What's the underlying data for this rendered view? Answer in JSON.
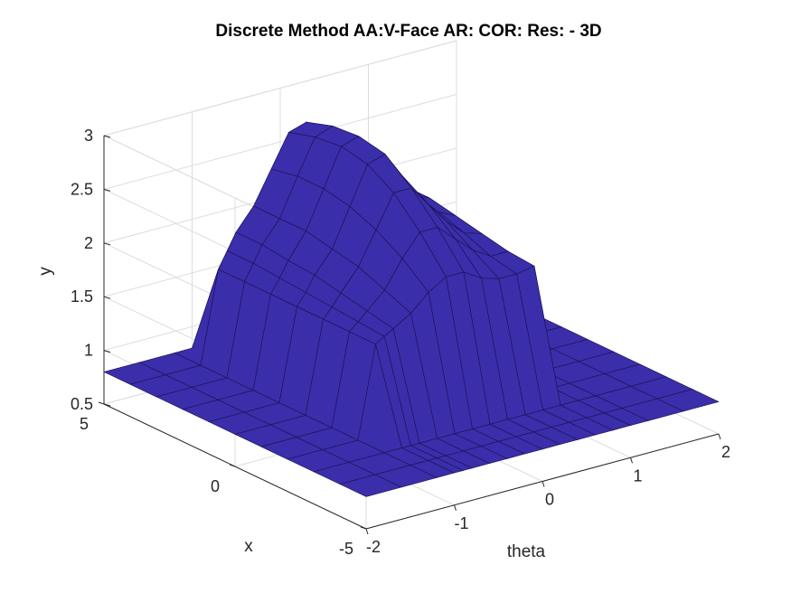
{
  "chart_data": {
    "type": "surface3d",
    "title": "Discrete Method AA:V-Face AR:     COR: Res: - 3D",
    "xlabel": "theta",
    "ylabel": "x",
    "zlabel": "y",
    "theta_lim": [
      -2,
      2
    ],
    "x_lim": [
      -5,
      5
    ],
    "y_lim": [
      0.5,
      3
    ],
    "theta_ticks": [
      -2,
      -1,
      0,
      1,
      2
    ],
    "x_ticks": [
      -5,
      0,
      5
    ],
    "y_ticks": [
      0.5,
      1,
      1.5,
      2,
      2.5,
      3
    ],
    "grid": true,
    "face_color": "#3a2eaa",
    "edge_color": "#1a1050",
    "highlight_color": "#d8d020",
    "surface": {
      "theta": [
        -2,
        -1.6,
        -1.2,
        -1.0,
        -0.9,
        -0.8,
        -0.6,
        -0.4,
        -0.2,
        0,
        0.2,
        0.4,
        0.6,
        0.8,
        1.0,
        1.2,
        1.6,
        2
      ],
      "x": [
        -5,
        -4,
        -3,
        -2,
        -1,
        0,
        1,
        2,
        3,
        4,
        5
      ],
      "y": [
        [
          0.8,
          0.8,
          0.8,
          0.8,
          0.8,
          0.8,
          0.8,
          0.8,
          0.8,
          0.8,
          0.8
        ],
        [
          0.8,
          0.8,
          0.8,
          0.8,
          0.8,
          0.8,
          0.8,
          0.8,
          0.8,
          0.8,
          0.8
        ],
        [
          0.8,
          0.8,
          0.8,
          0.8,
          0.8,
          0.8,
          0.8,
          0.8,
          0.8,
          0.8,
          0.8
        ],
        [
          0.8,
          0.8,
          0.8,
          1.65,
          1.65,
          1.65,
          1.65,
          1.65,
          1.65,
          1.65,
          0.8
        ],
        [
          0.8,
          0.8,
          0.8,
          1.7,
          1.72,
          1.74,
          1.76,
          1.78,
          1.8,
          1.8,
          0.8
        ],
        [
          0.8,
          0.8,
          0.8,
          1.75,
          1.8,
          1.85,
          1.9,
          1.92,
          1.95,
          1.95,
          0.8
        ],
        [
          0.8,
          0.8,
          0.8,
          1.85,
          1.95,
          2.05,
          2.1,
          2.15,
          2.15,
          2.15,
          0.8
        ],
        [
          0.8,
          0.8,
          0.8,
          2.0,
          2.2,
          2.35,
          2.45,
          2.5,
          2.5,
          2.45,
          0.8
        ],
        [
          0.8,
          0.8,
          0.8,
          2.1,
          2.4,
          2.65,
          2.8,
          2.85,
          2.82,
          2.75,
          0.8
        ],
        [
          0.8,
          0.8,
          0.8,
          2.1,
          2.4,
          2.65,
          2.85,
          2.9,
          2.88,
          2.8,
          0.8
        ],
        [
          0.8,
          0.8,
          0.8,
          2.0,
          2.25,
          2.45,
          2.6,
          2.65,
          2.62,
          2.55,
          0.8
        ],
        [
          0.8,
          0.8,
          0.8,
          1.95,
          2.1,
          2.25,
          2.35,
          2.4,
          2.38,
          2.32,
          0.8
        ],
        [
          0.8,
          0.8,
          0.8,
          1.95,
          2.0,
          2.1,
          2.18,
          2.22,
          2.22,
          2.2,
          0.8
        ],
        [
          0.8,
          0.8,
          0.8,
          1.98,
          2.0,
          2.05,
          2.1,
          2.15,
          2.15,
          2.15,
          0.8
        ],
        [
          0.8,
          0.8,
          0.8,
          0.8,
          0.8,
          0.8,
          0.8,
          0.8,
          0.8,
          0.8,
          0.8
        ],
        [
          0.8,
          0.8,
          0.8,
          0.8,
          0.8,
          0.8,
          0.8,
          0.8,
          0.8,
          0.8,
          0.8
        ],
        [
          0.8,
          0.8,
          0.8,
          0.8,
          0.8,
          0.8,
          0.8,
          0.8,
          0.8,
          0.8,
          0.8
        ],
        [
          0.8,
          0.8,
          0.8,
          0.8,
          0.8,
          0.8,
          0.8,
          0.8,
          0.8,
          0.8,
          0.8
        ]
      ]
    }
  }
}
